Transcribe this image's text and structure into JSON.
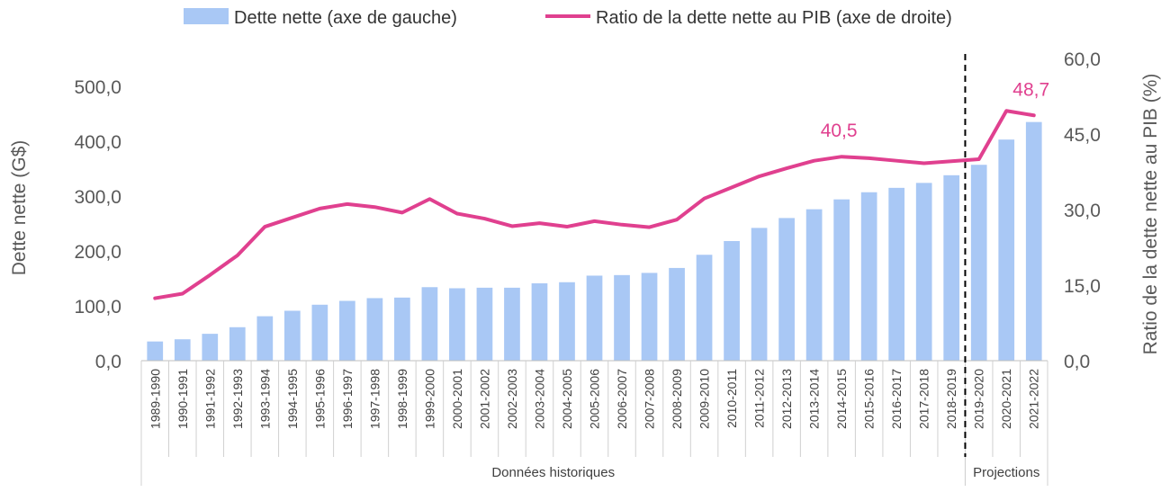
{
  "chart_data": {
    "type": "bar+line",
    "title": "",
    "categories": [
      "1989-1990",
      "1990-1991",
      "1991-1992",
      "1992-1993",
      "1993-1994",
      "1994-1995",
      "1995-1996",
      "1996-1997",
      "1997-1998",
      "1998-1999",
      "1999-2000",
      "2000-2001",
      "2001-2002",
      "2002-2003",
      "2003-2004",
      "2004-2005",
      "2005-2006",
      "2006-2007",
      "2007-2008",
      "2008-2009",
      "2009-2010",
      "2010-2011",
      "2011-2012",
      "2012-2013",
      "2013-2014",
      "2014-2015",
      "2015-2016",
      "2016-2017",
      "2017-2018",
      "2018-2019",
      "2019-2020",
      "2020-2021",
      "2021-2022"
    ],
    "series": [
      {
        "name": "Dette nette (axe de gauche)",
        "type": "bar",
        "axis": "left",
        "color": "#a9c8f5",
        "values": [
          35,
          39,
          49,
          61,
          81,
          91,
          102,
          109,
          114,
          115,
          134,
          132,
          133,
          133,
          141,
          143,
          155,
          156,
          160,
          169,
          193,
          218,
          242,
          260,
          276,
          294,
          307,
          315,
          324,
          338,
          357,
          403,
          435
        ]
      },
      {
        "name": "Ratio de la dette nette au PIB (axe de droite)",
        "type": "line",
        "axis": "right",
        "color": "#e0408f",
        "values": [
          12.4,
          13.3,
          17.0,
          20.9,
          26.6,
          28.4,
          30.2,
          31.1,
          30.5,
          29.4,
          32.1,
          29.2,
          28.2,
          26.7,
          27.3,
          26.6,
          27.7,
          27.0,
          26.5,
          28.0,
          32.2,
          34.4,
          36.6,
          38.2,
          39.7,
          40.5,
          40.2,
          39.7,
          39.2,
          39.6,
          40.0,
          49.6,
          48.7
        ]
      }
    ],
    "data_labels": [
      {
        "category": "2014-2015",
        "series": 1,
        "text": "40,5"
      },
      {
        "category": "2021-2022",
        "series": 1,
        "text": "48,7"
      }
    ],
    "ylabel": "Dette nette (G$)",
    "y2label": "Ratio de la dette nette au PIB (%)",
    "ylim": [
      0,
      500
    ],
    "y2lim": [
      0,
      60
    ],
    "yticks": [
      "0,0",
      "100,0",
      "200,0",
      "300,0",
      "400,0",
      "500,0"
    ],
    "y2ticks": [
      "0,0",
      "15,0",
      "30,0",
      "45,0",
      "60,0"
    ],
    "groups": [
      {
        "label": "Données historiques",
        "from": "1989-1990",
        "to": "2018-2019"
      },
      {
        "label": "Projections",
        "from": "2019-2020",
        "to": "2021-2022"
      }
    ],
    "divider_between": [
      "2018-2019",
      "2019-2020"
    ],
    "legend_position": "top",
    "grid": false
  }
}
